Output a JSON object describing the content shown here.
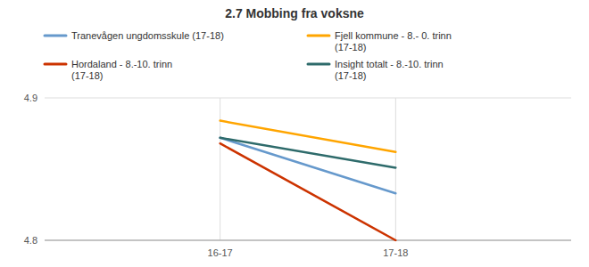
{
  "chart_data": {
    "type": "line",
    "title": "2.7 Mobbing fra voksne",
    "categories": [
      "16-17",
      "17-18"
    ],
    "series": [
      {
        "name": "Tranevågen ungdomsskule (17-18)",
        "color": "#6699CC",
        "values": [
          4.872,
          4.833
        ]
      },
      {
        "name": "Fjell kommune - 8.- 0. trinn\n(17-18)",
        "color": "#FFA500",
        "values": [
          4.884,
          4.862
        ]
      },
      {
        "name": "Hordaland - 8.-10. trinn\n(17-18)",
        "color": "#CC3300",
        "values": [
          4.868,
          4.8
        ]
      },
      {
        "name": "Insight totalt - 8.-10. trinn\n(17-18)",
        "color": "#2E6B6B",
        "values": [
          4.872,
          4.851
        ]
      }
    ],
    "ylim": [
      4.8,
      4.9
    ],
    "yticks": [
      4.8,
      4.9
    ],
    "grid": true,
    "legend": "top-left"
  }
}
